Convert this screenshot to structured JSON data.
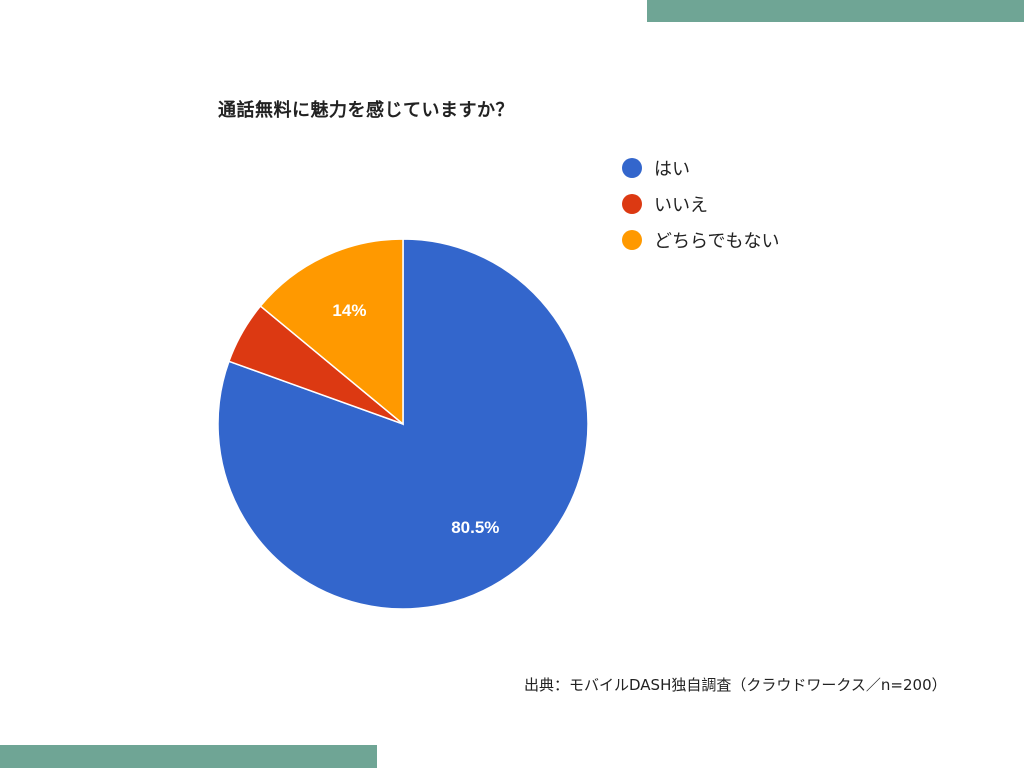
{
  "chart_data": {
    "type": "pie",
    "title": "通話無料に魅力を感じていますか？",
    "slices": [
      {
        "label": "はい",
        "value": 80.5,
        "color": "#3366cc",
        "data_label": "80.5%"
      },
      {
        "label": "いいえ",
        "value": 5.5,
        "color": "#dc3912",
        "data_label": ""
      },
      {
        "label": "どちらでもない",
        "value": 14,
        "color": "#ff9900",
        "data_label": "14%"
      }
    ],
    "legend_position": "top-right"
  },
  "source": "出典：モバイルDASH独自調査（クラウドワークス／n=200）",
  "decor_color": "#6fa595"
}
